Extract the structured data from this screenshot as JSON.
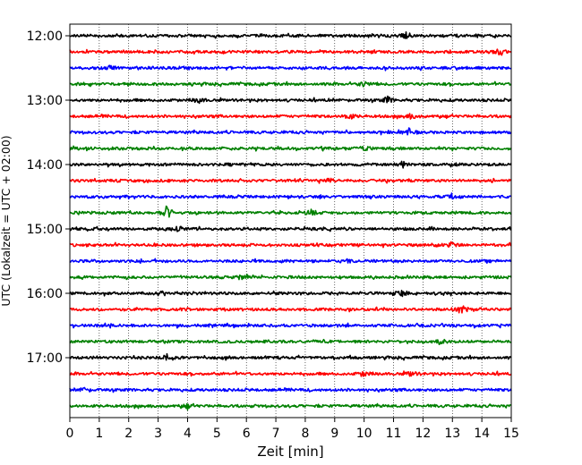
{
  "chart_data": {
    "type": "line",
    "title": "",
    "xlabel": "Zeit  [min]",
    "ylabel": "UTC (Lokalzeit = UTC + 02:00)",
    "xlim": [
      0,
      15
    ],
    "x_ticks": [
      "0",
      "1",
      "2",
      "3",
      "4",
      "5",
      "6",
      "7",
      "8",
      "9",
      "10",
      "11",
      "12",
      "13",
      "14",
      "15"
    ],
    "y_ticks": [
      "12:00",
      "13:00",
      "14:00",
      "15:00",
      "16:00",
      "17:00"
    ],
    "grid": "vertical dotted",
    "row_minutes": 15,
    "start_time": "12:00",
    "traces": [
      {
        "start": "12:00",
        "color": "#000000",
        "events": [
          {
            "t": 11.4,
            "amp": 1.8
          }
        ]
      },
      {
        "start": "12:15",
        "color": "#ff0000",
        "events": [
          {
            "t": 14.6,
            "amp": 1.5
          }
        ]
      },
      {
        "start": "12:30",
        "color": "#0000ff",
        "events": [
          {
            "t": 1.4,
            "amp": 1.1
          }
        ]
      },
      {
        "start": "12:45",
        "color": "#008000",
        "events": [
          {
            "t": 10.0,
            "amp": 1.3
          }
        ]
      },
      {
        "start": "13:00",
        "color": "#000000",
        "events": [
          {
            "t": 10.8,
            "amp": 1.6
          },
          {
            "t": 4.4,
            "amp": 1.2
          }
        ]
      },
      {
        "start": "13:15",
        "color": "#ff0000",
        "events": [
          {
            "t": 9.5,
            "amp": 1.5
          },
          {
            "t": 11.6,
            "amp": 1.2
          }
        ]
      },
      {
        "start": "13:30",
        "color": "#0000ff",
        "events": [
          {
            "t": 11.5,
            "amp": 1.8
          }
        ]
      },
      {
        "start": "13:45",
        "color": "#008000",
        "events": [
          {
            "t": 10.0,
            "amp": 1.7
          }
        ]
      },
      {
        "start": "14:00",
        "color": "#000000",
        "events": [
          {
            "t": 11.3,
            "amp": 1.5
          }
        ]
      },
      {
        "start": "14:15",
        "color": "#ff0000",
        "events": [
          {
            "t": 8.8,
            "amp": 1.1
          }
        ]
      },
      {
        "start": "14:30",
        "color": "#0000ff",
        "events": [
          {
            "t": 13.0,
            "amp": 1.0
          }
        ]
      },
      {
        "start": "14:45",
        "color": "#008000",
        "events": [
          {
            "t": 3.3,
            "amp": 3.2
          },
          {
            "t": 8.2,
            "amp": 1.3
          }
        ]
      },
      {
        "start": "15:00",
        "color": "#000000",
        "events": [
          {
            "t": 3.7,
            "amp": 1.2
          }
        ]
      },
      {
        "start": "15:15",
        "color": "#ff0000",
        "events": [
          {
            "t": 13.0,
            "amp": 1.6
          },
          {
            "t": 12.3,
            "amp": 1.2
          }
        ]
      },
      {
        "start": "15:30",
        "color": "#0000ff",
        "events": [
          {
            "t": 9.4,
            "amp": 1.0
          }
        ]
      },
      {
        "start": "15:45",
        "color": "#008000",
        "events": [
          {
            "t": 5.8,
            "amp": 1.0
          }
        ]
      },
      {
        "start": "16:00",
        "color": "#000000",
        "events": [
          {
            "t": 11.3,
            "amp": 1.6
          }
        ]
      },
      {
        "start": "16:15",
        "color": "#ff0000",
        "events": [
          {
            "t": 13.3,
            "amp": 2.2
          }
        ]
      },
      {
        "start": "16:30",
        "color": "#0000ff",
        "events": [
          {
            "t": 1.2,
            "amp": 1.0
          }
        ]
      },
      {
        "start": "16:45",
        "color": "#008000",
        "events": [
          {
            "t": 12.6,
            "amp": 1.1
          }
        ]
      },
      {
        "start": "17:00",
        "color": "#000000",
        "events": [
          {
            "t": 3.3,
            "amp": 1.4
          }
        ]
      },
      {
        "start": "17:15",
        "color": "#ff0000",
        "events": [
          {
            "t": 10.0,
            "amp": 1.5
          },
          {
            "t": 11.6,
            "amp": 1.2
          }
        ]
      },
      {
        "start": "17:30",
        "color": "#0000ff",
        "events": [
          {
            "t": 0.5,
            "amp": 1.0
          }
        ]
      },
      {
        "start": "17:45",
        "color": "#008000",
        "events": [
          {
            "t": 4.0,
            "amp": 1.0
          }
        ]
      }
    ]
  }
}
